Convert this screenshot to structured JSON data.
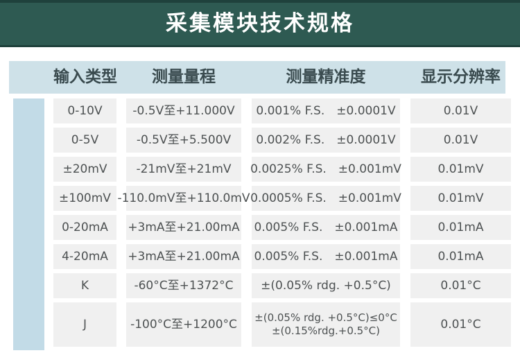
{
  "title": "采集模块技术规格",
  "colors": {
    "title_bar_teal": "#2E5A52",
    "title_bar_edge": "#1F413C",
    "header_band_blue": "#CEE1E8",
    "accent_bar_blue": "#C2DBE7",
    "cell_gray": "#F0F0F0",
    "title_text": "#FFFFFF",
    "header_text": "#3A4B4F",
    "cell_text": "#4D5152"
  },
  "table": {
    "headers": [
      "输入类型",
      "测量量程",
      "测量精准度",
      "显示分辨率"
    ],
    "rows": [
      {
        "input": "0-10V",
        "range": "-0.5V至+11.000V",
        "acc1": "0.001% F.S.　±0.0001V",
        "resolution": "0.01V"
      },
      {
        "input": "0-5V",
        "range": "-0.5V至+5.500V",
        "acc1": "0.002% F.S.　±0.0001V",
        "resolution": "0.01V"
      },
      {
        "input": "±20mV",
        "range": "-21mV至+21mV",
        "acc1": "0.0025% F.S.　±0.001mV",
        "resolution": "0.01mV"
      },
      {
        "input": "±100mV",
        "range": "-110.0mV至+110.0mV",
        "acc1": "0.0005% F.S.　±0.001mV",
        "resolution": "0.01mV"
      },
      {
        "input": "0-20mA",
        "range": "+3mA至+21.00mA",
        "acc1": "0.005% F.S.　±0.001mA",
        "resolution": "0.01mA"
      },
      {
        "input": "4-20mA",
        "range": "+3mA至+21.00mA",
        "acc1": "0.005% F.S.　±0.001mA",
        "resolution": "0.01mA"
      },
      {
        "input": "K",
        "range": "-60°C至+1372°C",
        "acc1": "±(0.05% rdg. +0.5°C)",
        "resolution": "0.01°C"
      },
      {
        "input": "J",
        "range": "-100°C至+1200°C",
        "acc1": "±(0.05% rdg. +0.5°C)≤0°C",
        "acc2": "±(0.15%rdg.+0.5°C)",
        "resolution": "0.01°C"
      }
    ]
  }
}
